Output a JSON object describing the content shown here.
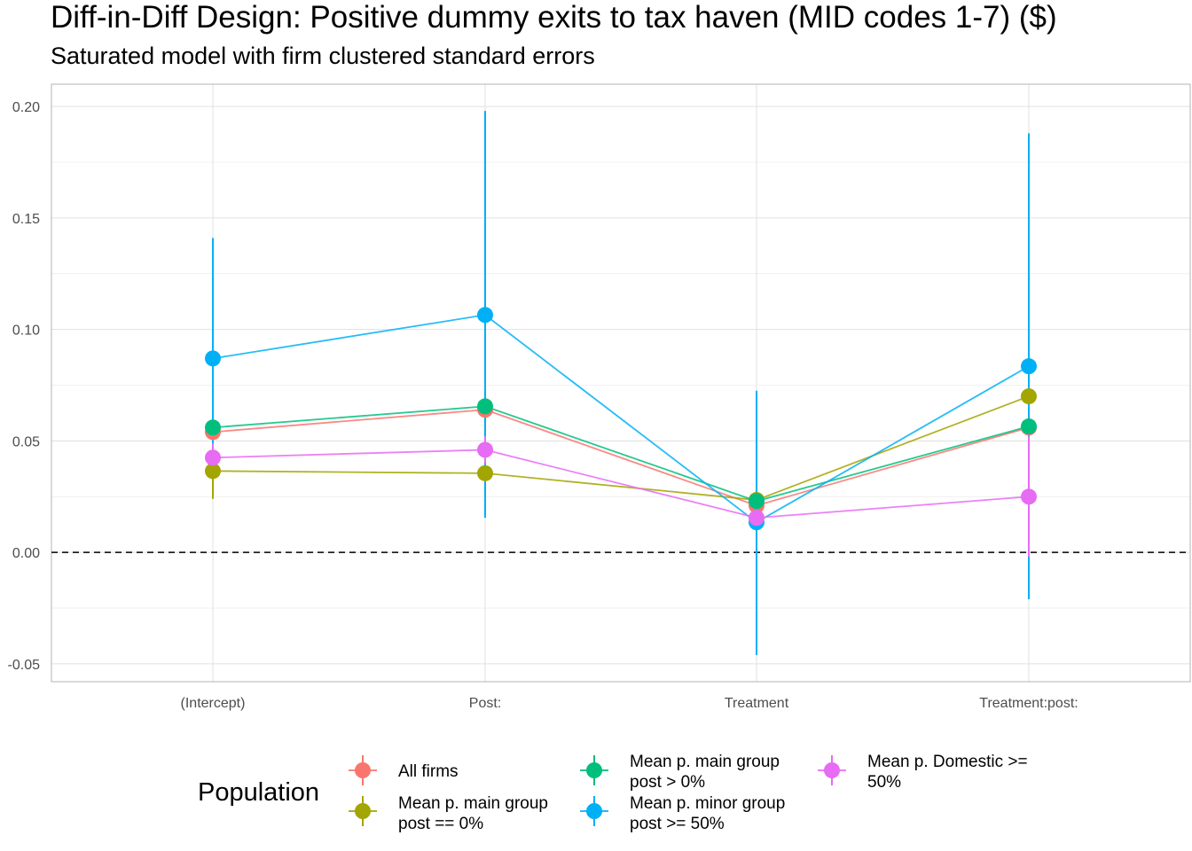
{
  "title": "Diff-in-Diff Design: Positive dummy exits to tax haven (MID codes 1-7)  ($)",
  "subtitle": "Saturated model with firm clustered standard errors",
  "chart_data": {
    "type": "scatter",
    "title": "Diff-in-Diff Design: Positive dummy exits to tax haven (MID codes 1-7)  ($)",
    "subtitle": "Saturated model with firm clustered standard errors",
    "xlabel": "",
    "ylabel": "",
    "categories": [
      "(Intercept)",
      "Post:",
      "Treatment",
      "Treatment:post:"
    ],
    "ylim": [
      -0.058,
      0.21
    ],
    "yticks": [
      -0.05,
      0.0,
      0.05,
      0.1,
      0.15,
      0.2
    ],
    "ytick_labels": [
      "-0.05",
      "0.00",
      "0.05",
      "0.10",
      "0.15",
      "0.20"
    ],
    "reference_line": {
      "y": 0,
      "style": "dashed"
    },
    "grid": true,
    "legend": {
      "title": "Population",
      "position": "bottom"
    },
    "series": [
      {
        "name": "All firms",
        "color": "#F8766D",
        "values": [
          0.054,
          0.064,
          0.021,
          0.056
        ],
        "lower": [
          0.048,
          0.058,
          0.016,
          0.05
        ],
        "upper": [
          0.06,
          0.07,
          0.026,
          0.062
        ]
      },
      {
        "name": "Mean p. main group post == 0%",
        "color": "#A3A500",
        "values": [
          0.0365,
          0.0355,
          0.0235,
          0.07
        ],
        "lower": [
          0.024,
          0.029,
          0.019,
          0.064
        ],
        "upper": [
          0.049,
          0.042,
          0.028,
          0.076
        ]
      },
      {
        "name": "Mean p. main group post > 0%",
        "color": "#00BF7D",
        "values": [
          0.056,
          0.0655,
          0.023,
          0.0565
        ],
        "lower": [
          0.05,
          0.059,
          0.018,
          0.05
        ],
        "upper": [
          0.062,
          0.072,
          0.028,
          0.063
        ]
      },
      {
        "name": "Mean p. minor group post >= 50%",
        "color": "#00B0F6",
        "values": [
          0.087,
          0.1065,
          0.0135,
          0.0835
        ],
        "lower": [
          0.033,
          0.0155,
          -0.046,
          -0.021
        ],
        "upper": [
          0.141,
          0.198,
          0.0725,
          0.188
        ]
      },
      {
        "name": "Mean p. Domestic >= 50%",
        "color": "#E76BF3",
        "values": [
          0.0425,
          0.046,
          0.0155,
          0.025
        ],
        "lower": [
          0.036,
          0.04,
          0.011,
          -0.002
        ],
        "upper": [
          0.049,
          0.052,
          0.02,
          0.052
        ]
      }
    ]
  }
}
